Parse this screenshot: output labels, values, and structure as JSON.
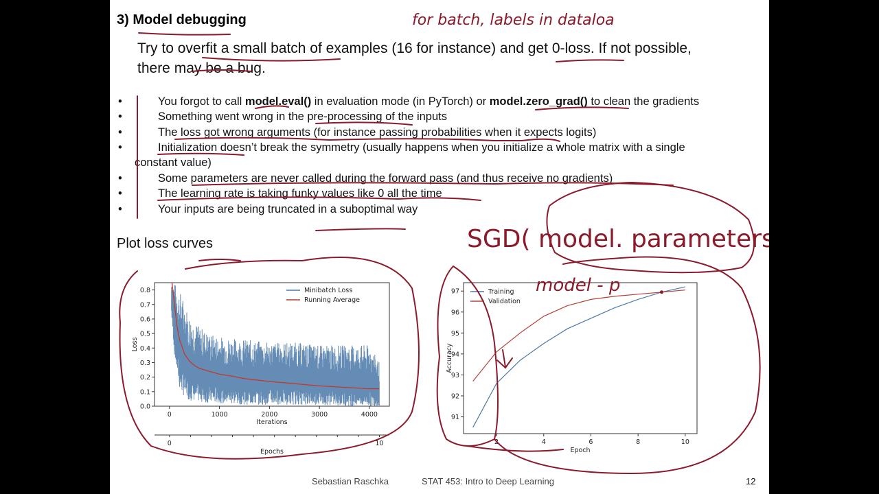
{
  "slide": {
    "section_title": "3)  Model debugging",
    "intro_line1": "Try to overfit a small batch of examples (16 for instance) and get 0-loss. If not possible,",
    "intro_line2": "there may be a bug.",
    "bullets": [
      {
        "pre": "You forgot to call ",
        "b1": "model.eval()",
        "mid": " in evaluation mode (in PyTorch) or ",
        "b2": "model.zero_grad()",
        "post": " to clean the gradients"
      },
      {
        "text": "Something went wrong in the pre-processing of the inputs"
      },
      {
        "text": "The loss got wrong arguments (for instance passing probabilities when it expects logits)"
      },
      {
        "text": "Initialization doesn’t break the symmetry (usually happens when you initialize a whole matrix with a single",
        "cont": "constant value)"
      },
      {
        "text": "Some parameters are never called during the forward pass (and thus receive no gradients)"
      },
      {
        "text": "The learning rate is taking funky values like 0 all the time"
      },
      {
        "text": "Your inputs are being truncated in a suboptimal way"
      }
    ],
    "bullet_symbol": "•",
    "plot_heading": "Plot loss curves",
    "footer_author": "Sebastian Raschka",
    "footer_course": "STAT 453: Intro to Deep Learning",
    "page_number": "12"
  },
  "handwriting": {
    "top_right": "for batch, labels in dataloa",
    "sgd": "SGD( model. parameters() )",
    "model_p": "model - p"
  },
  "colors": {
    "ink": "#8b1a2b",
    "minibatch": "#4a78a8",
    "running": "#c0392b",
    "training": "#4a78a8",
    "validation": "#b5403a"
  },
  "chart_data": [
    {
      "type": "line",
      "xlabel": "Iterations",
      "ylabel": "Loss",
      "xlim": [
        -300,
        4400
      ],
      "ylim": [
        0.0,
        0.85
      ],
      "x_ticks": [
        0,
        1000,
        2000,
        3000,
        4000
      ],
      "y_ticks": [
        0.0,
        0.1,
        0.2,
        0.3,
        0.4,
        0.5,
        0.6,
        0.7,
        0.8
      ],
      "legend": "top-right",
      "secondary_x": {
        "label": "Epochs",
        "ticks": [
          0,
          10
        ]
      },
      "series": [
        {
          "name": "Minibatch Loss",
          "x": [
            0,
            100,
            200,
            300,
            400,
            600,
            800,
            1000,
            1500,
            2000,
            2500,
            3000,
            3500,
            4000,
            4200
          ],
          "y_low": [
            0.8,
            0.35,
            0.12,
            0.06,
            0.04,
            0.03,
            0.02,
            0.02,
            0.01,
            0.01,
            0.01,
            0.01,
            0.0,
            0.0,
            0.0
          ],
          "y_high": [
            0.9,
            0.85,
            0.8,
            0.72,
            0.62,
            0.55,
            0.5,
            0.48,
            0.46,
            0.44,
            0.44,
            0.42,
            0.42,
            0.42,
            0.3
          ]
        },
        {
          "name": "Running Average",
          "x": [
            50,
            100,
            150,
            200,
            300,
            400,
            500,
            600,
            800,
            1000,
            1200,
            1500,
            2000,
            2500,
            3000,
            3500,
            4000,
            4200
          ],
          "y": [
            0.85,
            0.7,
            0.55,
            0.46,
            0.36,
            0.31,
            0.28,
            0.26,
            0.24,
            0.22,
            0.21,
            0.19,
            0.17,
            0.155,
            0.14,
            0.13,
            0.12,
            0.12
          ]
        }
      ]
    },
    {
      "type": "line",
      "xlabel": "Epoch",
      "ylabel": "Accuracy",
      "xlim": [
        0.6,
        10.5
      ],
      "ylim": [
        90.2,
        97.4
      ],
      "x_ticks": [
        2,
        4,
        6,
        8,
        10
      ],
      "y_ticks": [
        91,
        92,
        93,
        94,
        95,
        96,
        97
      ],
      "legend": "top-left",
      "series": [
        {
          "name": "Training",
          "x": [
            1,
            2,
            3,
            4,
            5,
            6,
            7,
            8,
            9,
            10
          ],
          "y": [
            90.5,
            92.6,
            93.7,
            94.5,
            95.2,
            95.7,
            96.2,
            96.6,
            96.95,
            97.2
          ]
        },
        {
          "name": "Validation",
          "x": [
            1,
            2,
            3,
            4,
            5,
            6,
            7,
            8,
            9,
            10
          ],
          "y": [
            92.7,
            94.1,
            95.0,
            95.8,
            96.3,
            96.6,
            96.75,
            96.85,
            96.95,
            97.05
          ]
        }
      ]
    }
  ]
}
